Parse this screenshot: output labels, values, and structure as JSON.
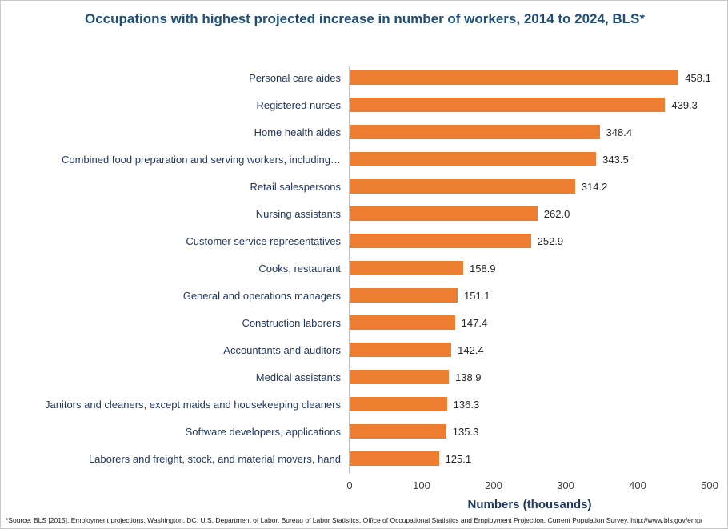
{
  "title": "Occupations with highest projected increase in number of workers, 2014 to 2024, BLS*",
  "footnote": "*Source: BLS [2015]. Employment projections.  Washington, DC: U.S. Department of Labor, Bureau of Labor Statistics, Office of Occupational Statistics and Employment  Projection, Current Population Survey.  http://www.bls.gov/emp/",
  "chart_data": {
    "type": "bar",
    "orientation": "horizontal",
    "title": "Occupations with highest projected increase in number of workers, 2014 to 2024, BLS*",
    "categories": [
      "Personal care aides",
      "Registered nurses",
      "Home health aides",
      "Combined food preparation and serving workers, including…",
      "Retail salespersons",
      "Nursing assistants",
      "Customer service representatives",
      "Cooks, restaurant",
      "General and operations managers",
      "Construction laborers",
      "Accountants and auditors",
      "Medical assistants",
      "Janitors and cleaners, except maids and housekeeping cleaners",
      "Software developers, applications",
      "Laborers and freight, stock, and material movers, hand"
    ],
    "values": [
      458.1,
      439.3,
      348.4,
      343.5,
      314.2,
      262.0,
      252.9,
      158.9,
      151.1,
      147.4,
      142.4,
      138.9,
      136.3,
      135.3,
      125.1
    ],
    "value_labels": [
      "458.1",
      "439.3",
      "348.4",
      "343.5",
      "314.2",
      "262.0",
      "252.9",
      "158.9",
      "151.1",
      "147.4",
      "142.4",
      "138.9",
      "136.3",
      "135.3",
      "125.1"
    ],
    "xlabel": "Numbers (thousands)",
    "ylabel": "",
    "xlim": [
      0,
      500
    ],
    "xticks": [
      0,
      100,
      200,
      300,
      400,
      500
    ],
    "grid": "off",
    "legend": "none",
    "bar_color": "#ED7D31",
    "category_label_color": "#1F3864",
    "title_color": "#1F4E79"
  }
}
